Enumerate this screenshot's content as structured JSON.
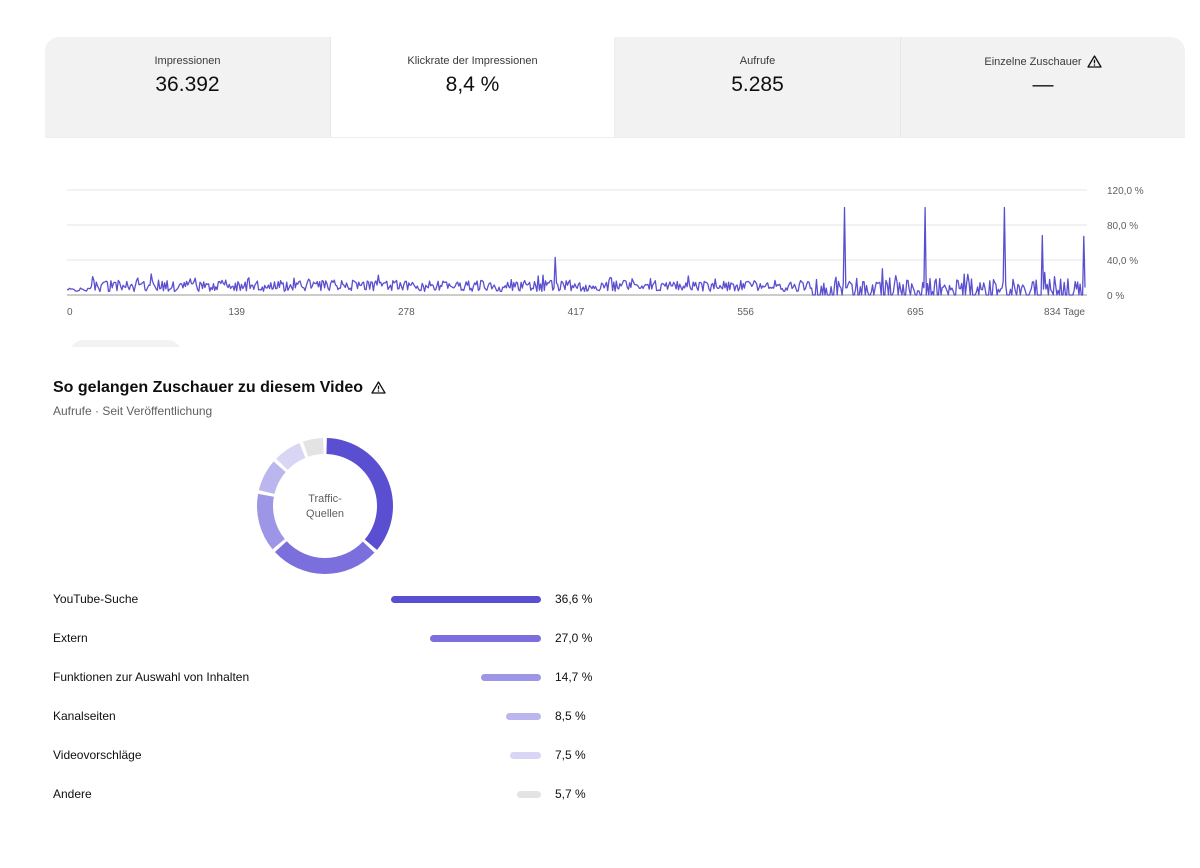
{
  "metrics": {
    "tabs": [
      {
        "label": "Impressionen",
        "value": "36.392",
        "active": false,
        "warning": false
      },
      {
        "label": "Klickrate der Impressionen",
        "value": "8,4 %",
        "active": true,
        "warning": false
      },
      {
        "label": "Aufrufe",
        "value": "5.285",
        "active": false,
        "warning": false
      },
      {
        "label": "Einzelne Zuschauer",
        "value": "—",
        "active": false,
        "warning": true
      }
    ]
  },
  "chart_data": {
    "type": "line",
    "series": [
      {
        "color": "#5a4fcf"
      }
    ],
    "x_ticks": [
      "0",
      "139",
      "278",
      "417",
      "556",
      "695",
      "834 Tage"
    ],
    "y_ticks": [
      "0 %",
      "40,0 %",
      "80,0 %",
      "120,0 %"
    ],
    "xlim": [
      0,
      834
    ],
    "ylim": [
      0,
      120
    ],
    "grid": true,
    "peaks": [
      {
        "x": 637,
        "y": 100
      },
      {
        "x": 703,
        "y": 100
      },
      {
        "x": 768,
        "y": 100
      },
      {
        "x": 833,
        "y": 67
      },
      {
        "x": 799,
        "y": 68
      },
      {
        "x": 400,
        "y": 43
      }
    ]
  },
  "traffic": {
    "title": "So gelangen Zuschauer zu diesem Video",
    "subtitle": "Aufrufe · Seit Veröffentlichung",
    "donut_center": [
      "Traffic-",
      "Quellen"
    ],
    "sources": [
      {
        "label": "YouTube-Suche",
        "value": "36,6 %",
        "share": 36.6,
        "color": "#5b4fd1"
      },
      {
        "label": "Extern",
        "value": "27,0 %",
        "share": 27.0,
        "color": "#7a6fdc"
      },
      {
        "label": "Funktionen zur Auswahl von Inhalten",
        "value": "14,7 %",
        "share": 14.7,
        "color": "#9d96e6"
      },
      {
        "label": "Kanalseiten",
        "value": "8,5 %",
        "share": 8.5,
        "color": "#bbb6ee"
      },
      {
        "label": "Videovorschläge",
        "value": "7,5 %",
        "share": 7.5,
        "color": "#d9d6f5"
      },
      {
        "label": "Andere",
        "value": "5,7 %",
        "share": 5.7,
        "color": "#e3e3e3"
      }
    ]
  },
  "icons": {
    "warning": "warning-triangle-icon"
  }
}
